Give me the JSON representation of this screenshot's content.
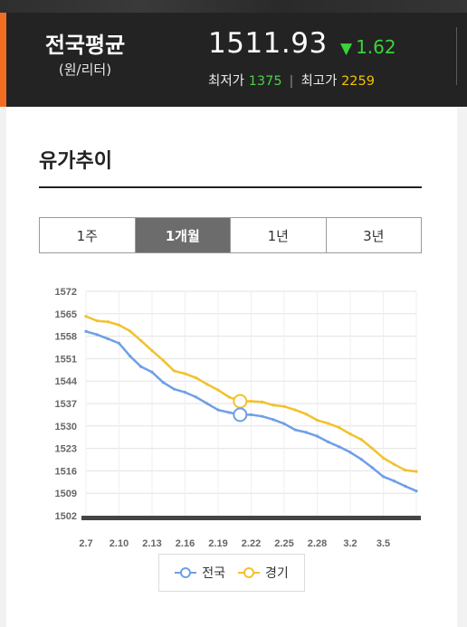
{
  "header": {
    "region": "전국평균",
    "unit": "(원/리터)",
    "average_price": "1511.93",
    "change_arrow": "▼",
    "change_value": "1.62",
    "low_label": "최저가",
    "low_value": "1375",
    "high_label": "최고가",
    "high_value": "2259"
  },
  "section": {
    "title": "유가추이"
  },
  "tabs": [
    {
      "label": "1주",
      "active": false
    },
    {
      "label": "1개월",
      "active": true
    },
    {
      "label": "1년",
      "active": false
    },
    {
      "label": "3년",
      "active": false
    }
  ],
  "colors": {
    "national": "#6f9fe6",
    "gyeonggi": "#f2c12e",
    "baseline": "#444444",
    "grid": "#e3e3e3"
  },
  "chart_data": {
    "type": "line",
    "title": "",
    "xlabel": "",
    "ylabel": "",
    "x_ticks": [
      "2.7",
      "2.10",
      "2.13",
      "2.16",
      "2.19",
      "2.22",
      "2.25",
      "2.28",
      "3.2",
      "3.5"
    ],
    "y_ticks": [
      1572,
      1565,
      1558,
      1551,
      1544,
      1537,
      1530,
      1523,
      1516,
      1509,
      1502
    ],
    "ylim": [
      1502,
      1572
    ],
    "grid": true,
    "legend_position": "bottom",
    "highlight_index": 14,
    "series": [
      {
        "name": "전국",
        "values": [
          1559.5,
          1558.5,
          1557.2,
          1555.8,
          1551.8,
          1548.5,
          1546.8,
          1543.6,
          1541.5,
          1540.5,
          1539,
          1537,
          1535,
          1534.2,
          1533.5,
          1533.5,
          1533,
          1532,
          1530.7,
          1528.8,
          1528,
          1526.8,
          1525,
          1523.5,
          1521.8,
          1519.6,
          1517,
          1514.2,
          1512.8,
          1511.2,
          1509.7
        ]
      },
      {
        "name": "경기",
        "values": [
          1564.2,
          1562.8,
          1562.5,
          1561.5,
          1559.6,
          1556.6,
          1553.5,
          1550.5,
          1547.2,
          1546.3,
          1545,
          1543,
          1541.2,
          1539,
          1537.7,
          1537.7,
          1537.5,
          1536.5,
          1536.1,
          1535,
          1533.7,
          1531.8,
          1530.8,
          1529.5,
          1527.5,
          1525.8,
          1523,
          1520,
          1518,
          1516.2,
          1515.8
        ]
      }
    ]
  }
}
